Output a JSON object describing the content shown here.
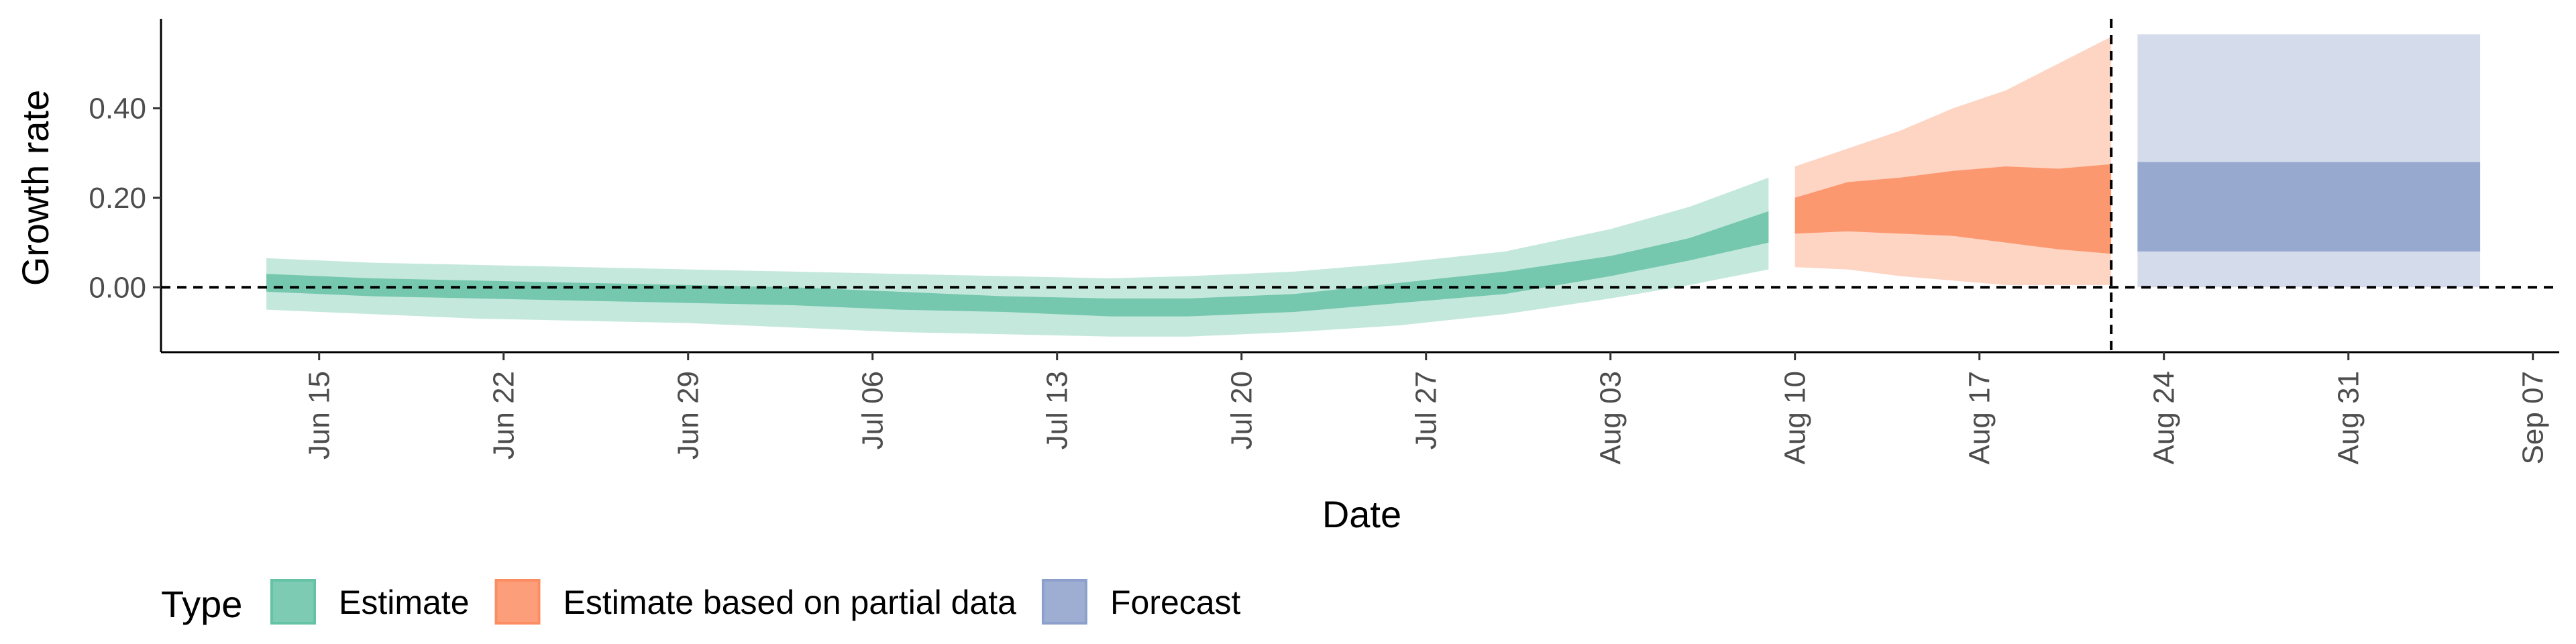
{
  "chart_data": {
    "type": "area",
    "xlabel": "Date",
    "ylabel": "Growth rate",
    "x_range": [
      "2020-06-09",
      "2020-09-08"
    ],
    "ylim": [
      -0.145,
      0.6
    ],
    "y_ticks": [
      0.0,
      0.2,
      0.4
    ],
    "y_tick_labels": [
      "0.00",
      "0.20",
      "0.40"
    ],
    "x_ticks": [
      "2020-06-15",
      "2020-06-22",
      "2020-06-29",
      "2020-07-06",
      "2020-07-13",
      "2020-07-20",
      "2020-07-27",
      "2020-08-03",
      "2020-08-10",
      "2020-08-17",
      "2020-08-24",
      "2020-08-31",
      "2020-09-07"
    ],
    "x_tick_labels": [
      "Jun 15",
      "Jun 22",
      "Jun 29",
      "Jul 06",
      "Jul 13",
      "Jul 20",
      "Jul 27",
      "Aug 03",
      "Aug 10",
      "Aug 17",
      "Aug 24",
      "Aug 31",
      "Sep 07"
    ],
    "reference_hline": 0,
    "reference_vline": "2020-08-22",
    "grid": false,
    "legend": {
      "title": "Type",
      "position": "bottom-left",
      "entries": [
        "Estimate",
        "Estimate based on partial data",
        "Forecast"
      ]
    },
    "series": [
      {
        "name": "Estimate",
        "color": "#66c2a5",
        "points": [
          {
            "date": "2020-06-13",
            "lo90": -0.05,
            "lo50": -0.01,
            "hi50": 0.03,
            "hi90": 0.065
          },
          {
            "date": "2020-06-17",
            "lo90": -0.06,
            "lo50": -0.02,
            "hi50": 0.02,
            "hi90": 0.055
          },
          {
            "date": "2020-06-21",
            "lo90": -0.07,
            "lo50": -0.025,
            "hi50": 0.015,
            "hi90": 0.05
          },
          {
            "date": "2020-06-25",
            "lo90": -0.075,
            "lo50": -0.03,
            "hi50": 0.01,
            "hi90": 0.045
          },
          {
            "date": "2020-06-29",
            "lo90": -0.08,
            "lo50": -0.035,
            "hi50": 0.005,
            "hi90": 0.04
          },
          {
            "date": "2020-07-03",
            "lo90": -0.09,
            "lo50": -0.04,
            "hi50": 0.0,
            "hi90": 0.035
          },
          {
            "date": "2020-07-07",
            "lo90": -0.1,
            "lo50": -0.05,
            "hi50": -0.01,
            "hi90": 0.03
          },
          {
            "date": "2020-07-11",
            "lo90": -0.105,
            "lo50": -0.055,
            "hi50": -0.02,
            "hi90": 0.025
          },
          {
            "date": "2020-07-15",
            "lo90": -0.11,
            "lo50": -0.065,
            "hi50": -0.025,
            "hi90": 0.02
          },
          {
            "date": "2020-07-18",
            "lo90": -0.11,
            "lo50": -0.065,
            "hi50": -0.025,
            "hi90": 0.025
          },
          {
            "date": "2020-07-22",
            "lo90": -0.1,
            "lo50": -0.055,
            "hi50": -0.015,
            "hi90": 0.035
          },
          {
            "date": "2020-07-26",
            "lo90": -0.085,
            "lo50": -0.035,
            "hi50": 0.01,
            "hi90": 0.055
          },
          {
            "date": "2020-07-30",
            "lo90": -0.06,
            "lo50": -0.015,
            "hi50": 0.035,
            "hi90": 0.08
          },
          {
            "date": "2020-08-03",
            "lo90": -0.025,
            "lo50": 0.025,
            "hi50": 0.07,
            "hi90": 0.13
          },
          {
            "date": "2020-08-06",
            "lo90": 0.005,
            "lo50": 0.06,
            "hi50": 0.11,
            "hi90": 0.18
          },
          {
            "date": "2020-08-09",
            "lo90": 0.04,
            "lo50": 0.1,
            "hi50": 0.17,
            "hi90": 0.245
          }
        ]
      },
      {
        "name": "Estimate based on partial data",
        "color": "#fc8d62",
        "points": [
          {
            "date": "2020-08-10",
            "lo90": 0.045,
            "lo50": 0.12,
            "hi50": 0.2,
            "hi90": 0.27
          },
          {
            "date": "2020-08-12",
            "lo90": 0.04,
            "lo50": 0.125,
            "hi50": 0.235,
            "hi90": 0.31
          },
          {
            "date": "2020-08-14",
            "lo90": 0.025,
            "lo50": 0.12,
            "hi50": 0.245,
            "hi90": 0.35
          },
          {
            "date": "2020-08-16",
            "lo90": 0.015,
            "lo50": 0.115,
            "hi50": 0.26,
            "hi90": 0.4
          },
          {
            "date": "2020-08-18",
            "lo90": 0.005,
            "lo50": 0.1,
            "hi50": 0.27,
            "hi90": 0.44
          },
          {
            "date": "2020-08-20",
            "lo90": 0.005,
            "lo50": 0.085,
            "hi50": 0.265,
            "hi90": 0.5
          },
          {
            "date": "2020-08-22",
            "lo90": 0.005,
            "lo50": 0.075,
            "hi50": 0.275,
            "hi90": 0.56
          }
        ]
      },
      {
        "name": "Forecast",
        "color": "#8da0cb",
        "points": [
          {
            "date": "2020-08-23",
            "lo90": 0.0,
            "lo50": 0.08,
            "hi50": 0.28,
            "hi90": 0.565
          },
          {
            "date": "2020-09-05",
            "lo90": 0.0,
            "lo50": 0.08,
            "hi50": 0.28,
            "hi90": 0.565
          }
        ]
      }
    ]
  }
}
